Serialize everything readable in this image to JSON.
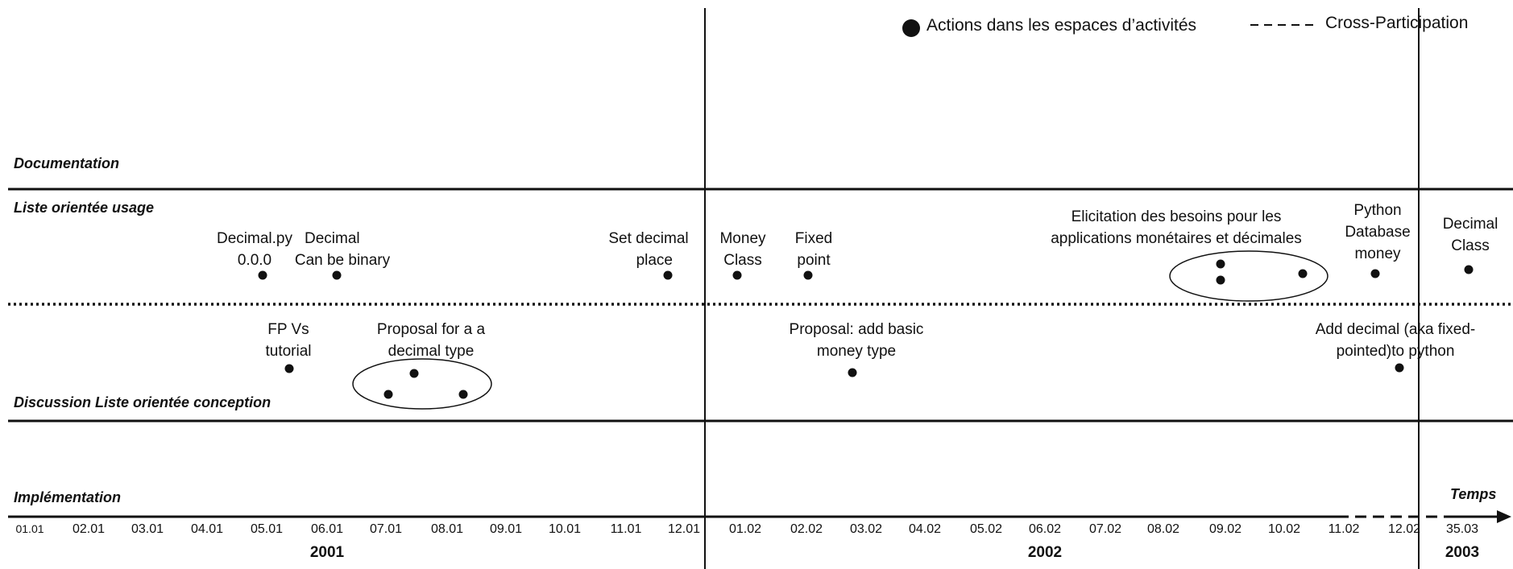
{
  "legend": {
    "actions": "Actions dans les espaces d’activités",
    "cross": "Cross-Participation"
  },
  "lanes": {
    "documentation": "Documentation",
    "usage": "Liste orientée usage",
    "conception": "Discussion Liste orientée conception",
    "implementation": "Implémentation"
  },
  "axis": {
    "title": "Temps",
    "months": [
      "01.01",
      "02.01",
      "03.01",
      "04.01",
      "05.01",
      "06.01",
      "07.01",
      "08.01",
      "09.01",
      "10.01",
      "11.01",
      "12.01",
      "01.02",
      "02.02",
      "03.02",
      "04.02",
      "05.02",
      "06.02",
      "07.02",
      "08.02",
      "09.02",
      "10.02",
      "11.02",
      "12.02",
      "35.03"
    ],
    "years": [
      "2001",
      "2002",
      "2003"
    ]
  },
  "usage_events": [
    {
      "line1": "Decimal.py",
      "line2": "0.0.0"
    },
    {
      "line1": "Decimal",
      "line2": "Can be binary"
    },
    {
      "line1": "Set decimal",
      "line2": "place"
    },
    {
      "line1": "Money",
      "line2": "Class"
    },
    {
      "line1": "Fixed",
      "line2": "point"
    },
    {
      "line1": "Elicitation des besoins pour les",
      "line2": "applications monétaires et décimales"
    },
    {
      "line1": "Python",
      "line2": "Database",
      "line3": "money"
    },
    {
      "line1": "Decimal",
      "line2": "Class"
    }
  ],
  "conception_events": [
    {
      "line1": "FP Vs",
      "line2": "tutorial"
    },
    {
      "line1": "Proposal for a  a",
      "line2": "decimal type"
    },
    {
      "line1": "Proposal: add basic",
      "line2": "money type"
    },
    {
      "line1": "Add decimal (aka fixed-",
      "line2": "pointed)to python"
    }
  ]
}
